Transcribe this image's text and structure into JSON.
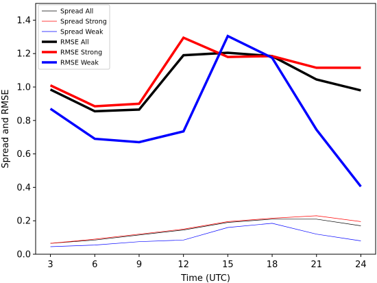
{
  "chart_data": {
    "type": "line",
    "title": "",
    "xlabel": "Time (UTC)",
    "ylabel": "Spread and RMSE",
    "x": [
      3,
      6,
      9,
      12,
      15,
      18,
      21,
      24
    ],
    "xlim": [
      2,
      25
    ],
    "ylim": [
      0.0,
      1.5
    ],
    "xticks": [
      "3",
      "6",
      "9",
      "12",
      "15",
      "18",
      "21",
      "24"
    ],
    "yticks": [
      "0.0",
      "0.2",
      "0.4",
      "0.6",
      "0.8",
      "1.0",
      "1.2",
      "1.4"
    ],
    "grid": false,
    "legend_position": "top-left",
    "series": [
      {
        "name": "Spread All",
        "color": "#000000",
        "style": "thin",
        "values": [
          0.065,
          0.085,
          0.115,
          0.145,
          0.19,
          0.21,
          0.21,
          0.17
        ]
      },
      {
        "name": "Spread Strong",
        "color": "#ff0000",
        "style": "thin",
        "values": [
          0.065,
          0.09,
          0.12,
          0.15,
          0.195,
          0.215,
          0.23,
          0.195
        ]
      },
      {
        "name": "Spread Weak",
        "color": "#0000ff",
        "style": "thin",
        "values": [
          0.045,
          0.055,
          0.075,
          0.085,
          0.16,
          0.185,
          0.12,
          0.08
        ]
      },
      {
        "name": "RMSE All",
        "color": "#000000",
        "style": "thick",
        "values": [
          0.985,
          0.855,
          0.865,
          1.19,
          1.205,
          1.185,
          1.045,
          0.98
        ]
      },
      {
        "name": "RMSE Strong",
        "color": "#ff0000",
        "style": "thick",
        "values": [
          1.01,
          0.885,
          0.9,
          1.295,
          1.18,
          1.185,
          1.115,
          1.115
        ]
      },
      {
        "name": "RMSE Weak",
        "color": "#0000ff",
        "style": "thick",
        "values": [
          0.87,
          0.69,
          0.67,
          0.735,
          1.305,
          1.175,
          0.745,
          0.405
        ]
      }
    ]
  }
}
